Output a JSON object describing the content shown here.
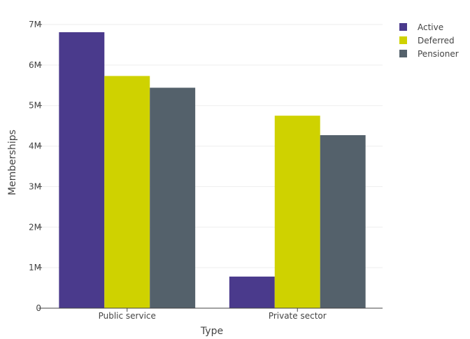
{
  "chart_data": {
    "type": "bar",
    "barmode": "grouped",
    "categories": [
      "Public service",
      "Private sector"
    ],
    "series": [
      {
        "name": "Active",
        "values": [
          6810000,
          780000
        ],
        "color": "#4a3a8c"
      },
      {
        "name": "Deferred",
        "values": [
          5730000,
          4750000
        ],
        "color": "#cfd200"
      },
      {
        "name": "Pensioner",
        "values": [
          5440000,
          4270000
        ],
        "color": "#54616b"
      }
    ],
    "title": "",
    "xlabel": "Type",
    "ylabel": "Memberships",
    "ylim": [
      0,
      7000000
    ],
    "yticks": [
      0,
      1000000,
      2000000,
      3000000,
      4000000,
      5000000,
      6000000,
      7000000
    ],
    "ytick_labels": [
      "0",
      "1M",
      "2M",
      "3M",
      "4M",
      "5M",
      "6M",
      "7M"
    ],
    "grid": true,
    "legend_position": "top-right"
  }
}
